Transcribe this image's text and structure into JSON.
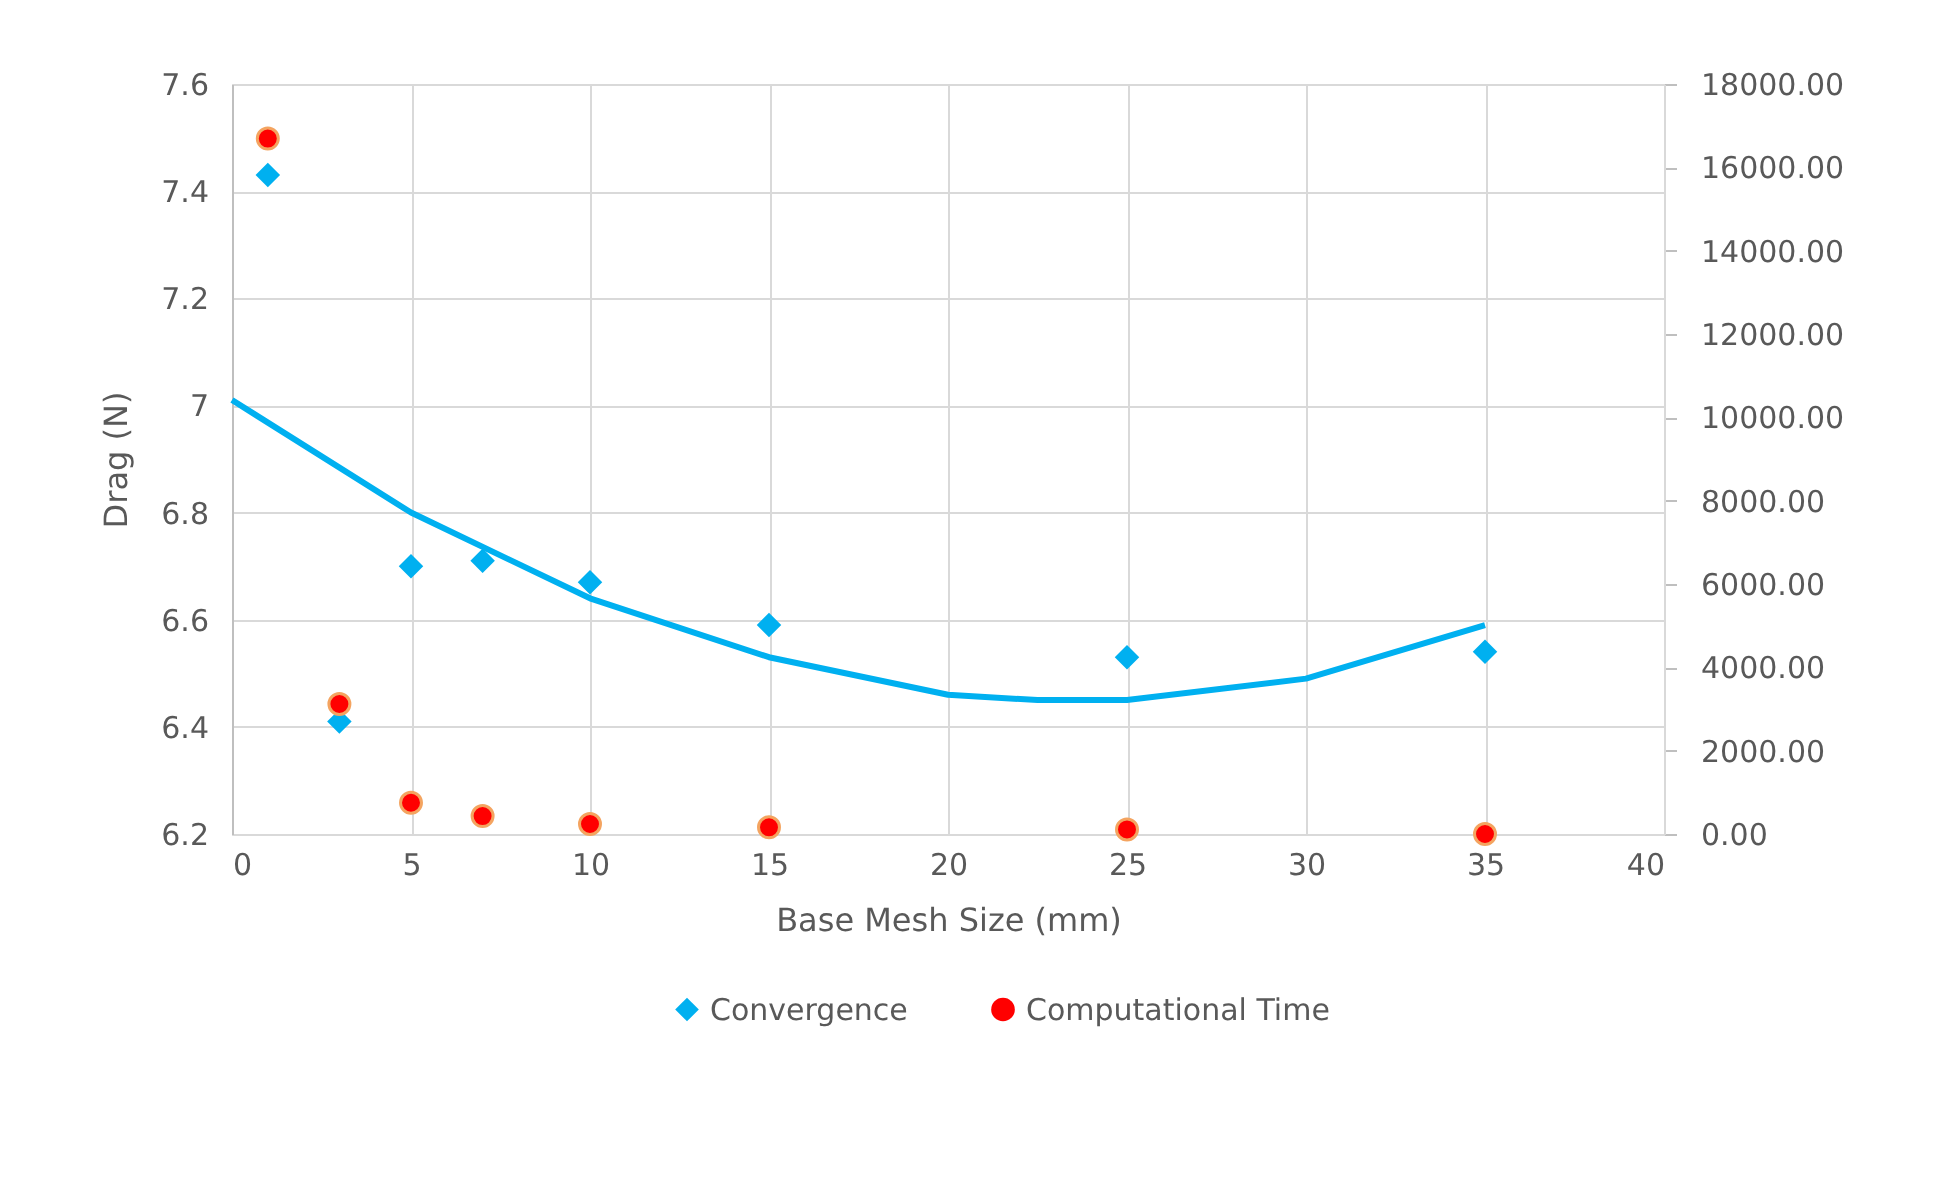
{
  "chart_data": {
    "type": "scatter",
    "xlabel": "Base Mesh Size (mm)",
    "ylabel": "Drag (N)",
    "xlim": [
      0,
      40
    ],
    "xticks": [
      0,
      5,
      10,
      15,
      20,
      25,
      30,
      35,
      40
    ],
    "ylim": [
      6.2,
      7.6
    ],
    "yticks": [
      6.2,
      6.4,
      6.6,
      6.8,
      7,
      7.2,
      7.4,
      7.6
    ],
    "y2lim": [
      0,
      18000
    ],
    "y2ticks": [
      {
        "value": 0,
        "label": "0.00"
      },
      {
        "value": 2000,
        "label": "2000.00"
      },
      {
        "value": 4000,
        "label": "4000.00"
      },
      {
        "value": 6000,
        "label": "6000.00"
      },
      {
        "value": 8000,
        "label": "8000.00"
      },
      {
        "value": 10000,
        "label": "10000.00"
      },
      {
        "value": 12000,
        "label": "12000.00"
      },
      {
        "value": 14000,
        "label": "14000.00"
      },
      {
        "value": 16000,
        "label": "16000.00"
      },
      {
        "value": 18000,
        "label": "18000.00"
      }
    ],
    "grid": true,
    "legend": "bottom",
    "series": [
      {
        "name": "Convergence",
        "marker": "diamond",
        "color": "#00b0f0",
        "x": [
          1,
          3,
          5,
          7,
          10,
          15,
          25,
          35
        ],
        "values": [
          7.43,
          6.41,
          6.7,
          6.71,
          6.67,
          6.59,
          6.53,
          6.54
        ]
      },
      {
        "name": "Computational Time",
        "marker": "circle",
        "color": "#ff0000",
        "axis": "y2",
        "x": [
          1,
          3,
          5,
          7,
          10,
          15,
          25,
          35
        ],
        "values": [
          16690,
          3120,
          750,
          430,
          240,
          160,
          110,
          0
        ]
      },
      {
        "type": "line",
        "marker": "none",
        "line_style": "solid",
        "color": "#00b0f0",
        "x": [
          0,
          5,
          10,
          15,
          20,
          22.5,
          25,
          30,
          35
        ],
        "values": [
          7.01,
          6.8,
          6.64,
          6.53,
          6.46,
          6.45,
          6.45,
          6.49,
          6.59
        ]
      }
    ]
  }
}
